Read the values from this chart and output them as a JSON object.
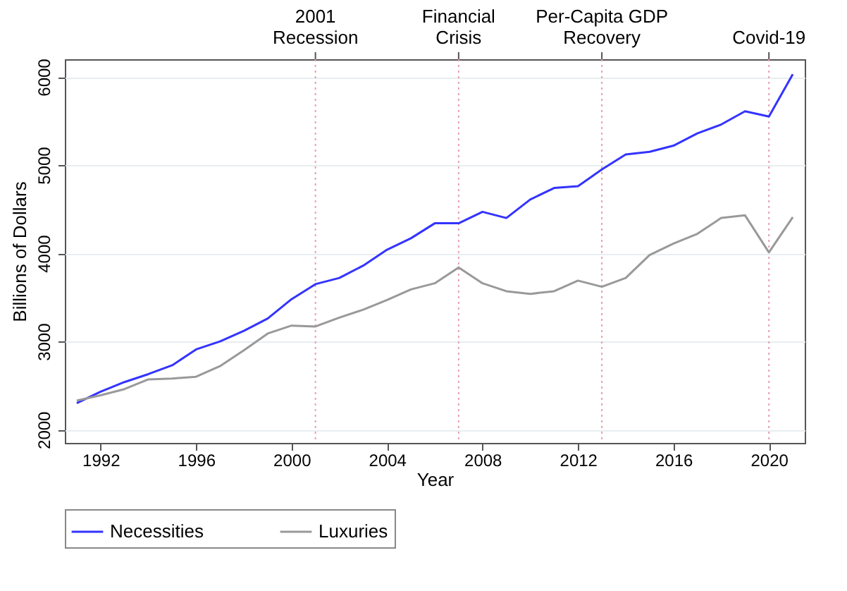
{
  "chart_data": {
    "type": "line",
    "xlabel": "Year",
    "ylabel": "Billions of Dollars",
    "x": [
      1991,
      1992,
      1993,
      1994,
      1995,
      1996,
      1997,
      1998,
      1999,
      2000,
      2001,
      2002,
      2003,
      2004,
      2005,
      2006,
      2007,
      2008,
      2009,
      2010,
      2011,
      2012,
      2013,
      2014,
      2015,
      2016,
      2017,
      2018,
      2019,
      2020,
      2021
    ],
    "series": [
      {
        "name": "Necessities",
        "color": "#3333ff",
        "values": [
          2300,
          2430,
          2540,
          2630,
          2730,
          2910,
          3000,
          3120,
          3260,
          3480,
          3650,
          3720,
          3860,
          4040,
          4170,
          4340,
          4340,
          4470,
          4400,
          4610,
          4740,
          4760,
          4950,
          5120,
          5150,
          5220,
          5360,
          5460,
          5610,
          5550,
          6030
        ]
      },
      {
        "name": "Luxuries",
        "color": "#999999",
        "values": [
          2330,
          2390,
          2460,
          2570,
          2580,
          2600,
          2720,
          2900,
          3090,
          3180,
          3170,
          3270,
          3360,
          3470,
          3590,
          3660,
          3840,
          3660,
          3570,
          3540,
          3570,
          3690,
          3620,
          3720,
          3980,
          4110,
          4220,
          4400,
          4430,
          4010,
          4410
        ]
      }
    ],
    "xlim": [
      1990.5,
      2021.5
    ],
    "xticks": [
      1992,
      1996,
      2000,
      2004,
      2008,
      2012,
      2016,
      2020
    ],
    "ylim": [
      1850,
      6200
    ],
    "yticks": [
      2000,
      3000,
      4000,
      5000,
      6000
    ],
    "grid": "y",
    "legend": "bottom",
    "ref_lines": [
      {
        "axis": "x",
        "value": 2001,
        "label": "2001\nRecession",
        "color": "#e8a0b0",
        "line_style": "dotted"
      },
      {
        "axis": "x",
        "value": 2007,
        "label": "Financial\nCrisis",
        "color": "#e8a0b0",
        "line_style": "dotted"
      },
      {
        "axis": "x",
        "value": 2013,
        "label": "Per-Capita GDP\nRecovery",
        "color": "#e8a0b0",
        "line_style": "dotted"
      },
      {
        "axis": "x",
        "value": 2020,
        "label": "Covid-19",
        "color": "#e8a0b0",
        "line_style": "dotted"
      }
    ]
  }
}
